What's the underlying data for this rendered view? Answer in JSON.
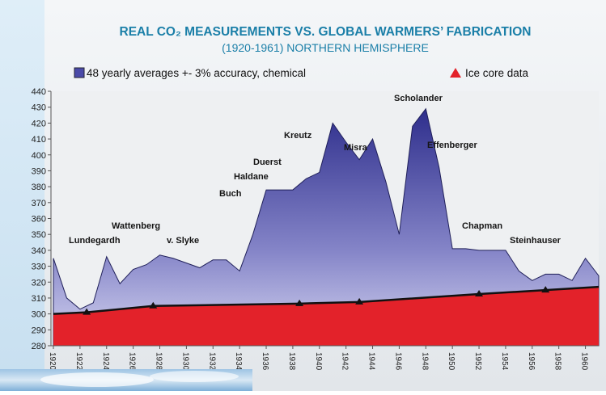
{
  "chart_data": {
    "type": "area",
    "title": "REAL CO₂ MEASUREMENTS VS. GLOBAL WARMERS’ FABRICATION",
    "subtitle": "(1920-1961) NORTHERN HEMISPHERE",
    "x": [
      1920,
      1921,
      1922,
      1923,
      1924,
      1925,
      1926,
      1927,
      1928,
      1929,
      1930,
      1931,
      1932,
      1933,
      1934,
      1935,
      1936,
      1937,
      1938,
      1939,
      1940,
      1941,
      1942,
      1943,
      1944,
      1945,
      1946,
      1947,
      1948,
      1949,
      1950,
      1951,
      1952,
      1953,
      1954,
      1955,
      1956,
      1957,
      1958,
      1959,
      1960,
      1961
    ],
    "series": [
      {
        "name": "48 yearly averages +- 3% accuracy, chemical",
        "color": "#4a4aa8",
        "values": [
          335,
          310,
          303,
          307,
          336,
          319,
          328,
          331,
          337,
          335,
          332,
          329,
          334,
          334,
          327,
          350,
          378,
          378,
          378,
          385,
          389,
          420,
          408,
          397,
          410,
          383,
          350,
          418,
          429,
          392,
          341,
          341,
          340,
          340,
          340,
          327,
          321,
          325,
          325,
          321,
          335,
          324
        ]
      },
      {
        "name": "Ice core data",
        "color": "#e3222a",
        "x": [
          1920,
          1922.5,
          1927.5,
          1938.5,
          1943,
          1952,
          1957,
          1961
        ],
        "values": [
          300,
          301,
          305,
          306.5,
          307.5,
          312.5,
          315,
          317
        ]
      }
    ],
    "annotations": [
      "Lundegardh",
      "Wattenberg",
      "v. Slyke",
      "Buch",
      "Haldane",
      "Duerst",
      "Kreutz",
      "Misra",
      "Scholander",
      "Effenberger",
      "Chapman",
      "Steinhauser"
    ],
    "xlim": [
      1920,
      1961
    ],
    "xticks": [
      1920,
      1922,
      1924,
      1926,
      1928,
      1930,
      1932,
      1934,
      1936,
      1938,
      1940,
      1942,
      1944,
      1946,
      1948,
      1950,
      1952,
      1954,
      1956,
      1958,
      1960
    ],
    "ylim": [
      280,
      440
    ],
    "yticks": [
      280,
      290,
      300,
      310,
      320,
      330,
      340,
      350,
      360,
      370,
      380,
      390,
      400,
      410,
      420,
      430,
      440
    ],
    "grid": false
  }
}
